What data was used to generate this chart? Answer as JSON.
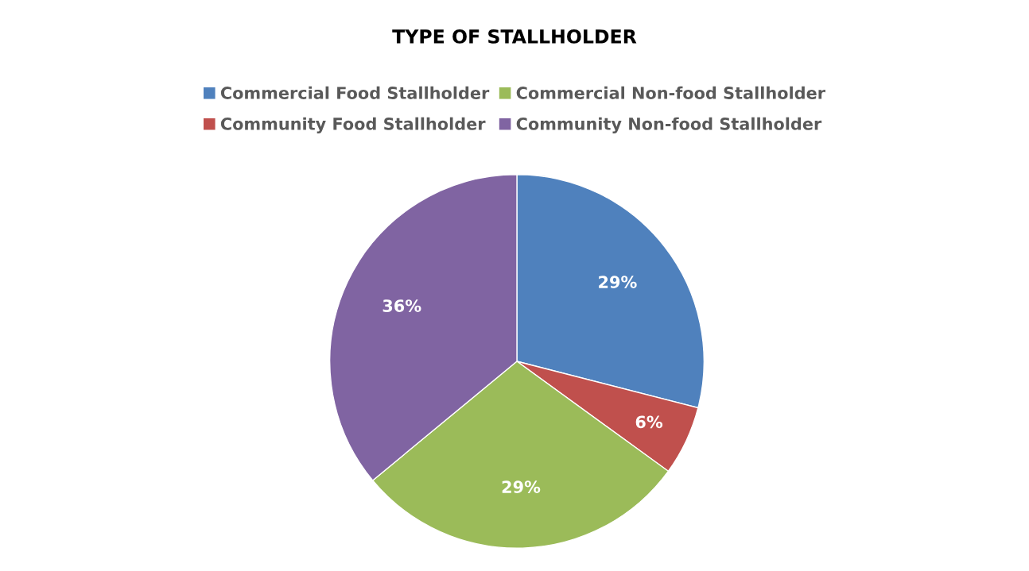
{
  "chart_data": {
    "type": "pie",
    "title": "TYPE OF STALLHOLDER",
    "categories": [
      "Commercial Food Stallholder",
      "Community Food Stallholder",
      "Commercial Non-food Stallholder",
      "Community Non-food Stallholder"
    ],
    "values": [
      29,
      6,
      29,
      36
    ],
    "colors": [
      "#4f81bd",
      "#c0504d",
      "#9bbb59",
      "#8064a2"
    ],
    "value_labels": [
      "29%",
      "6%",
      "29%",
      "36%"
    ],
    "legend": "top"
  }
}
